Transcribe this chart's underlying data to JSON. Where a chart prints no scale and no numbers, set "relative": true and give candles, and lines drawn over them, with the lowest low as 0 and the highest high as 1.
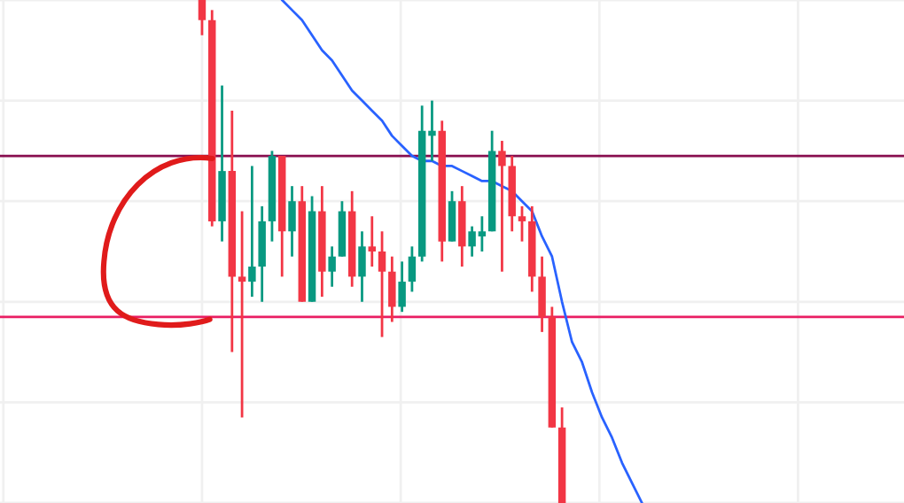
{
  "chart_data": {
    "type": "candlestick",
    "relative": true,
    "tick_labels": false,
    "grid": true,
    "categories": [
      null,
      null,
      null,
      null,
      null,
      null,
      null,
      null,
      null,
      null,
      null,
      null,
      null,
      null,
      null,
      null,
      null,
      null,
      null,
      null,
      null,
      null,
      null,
      null,
      null,
      null,
      null,
      null,
      null,
      null,
      null,
      null,
      null,
      null,
      null,
      null,
      null,
      null,
      null,
      null,
      null,
      null,
      null,
      null,
      null
    ],
    "ohlc": [
      [
        1.0,
        1.0,
        0.93,
        0.96
      ],
      [
        0.96,
        0.98,
        0.55,
        0.56
      ],
      [
        0.56,
        0.83,
        0.52,
        0.66
      ],
      [
        0.66,
        0.78,
        0.3,
        0.45
      ],
      [
        0.45,
        0.58,
        0.17,
        0.44
      ],
      [
        0.44,
        0.67,
        0.41,
        0.47
      ],
      [
        0.47,
        0.59,
        0.4,
        0.56
      ],
      [
        0.56,
        0.7,
        0.52,
        0.69
      ],
      [
        0.69,
        0.69,
        0.45,
        0.54
      ],
      [
        0.54,
        0.63,
        0.49,
        0.6
      ],
      [
        0.6,
        0.63,
        0.4,
        0.4
      ],
      [
        0.4,
        0.61,
        0.4,
        0.58
      ],
      [
        0.58,
        0.63,
        0.41,
        0.46
      ],
      [
        0.46,
        0.51,
        0.43,
        0.49
      ],
      [
        0.49,
        0.6,
        0.49,
        0.58
      ],
      [
        0.58,
        0.62,
        0.43,
        0.45
      ],
      [
        0.45,
        0.54,
        0.4,
        0.51
      ],
      [
        0.51,
        0.57,
        0.47,
        0.5
      ],
      [
        0.5,
        0.54,
        0.33,
        0.46
      ],
      [
        0.46,
        0.49,
        0.36,
        0.39
      ],
      [
        0.39,
        0.48,
        0.38,
        0.44
      ],
      [
        0.44,
        0.51,
        0.42,
        0.49
      ],
      [
        0.49,
        0.79,
        0.48,
        0.74
      ],
      [
        0.73,
        0.8,
        0.68,
        0.74
      ],
      [
        0.74,
        0.76,
        0.48,
        0.52
      ],
      [
        0.52,
        0.62,
        0.52,
        0.6
      ],
      [
        0.6,
        0.63,
        0.47,
        0.51
      ],
      [
        0.51,
        0.55,
        0.49,
        0.54
      ],
      [
        0.53,
        0.57,
        0.5,
        0.54
      ],
      [
        0.54,
        0.74,
        0.54,
        0.7
      ],
      [
        0.7,
        0.72,
        0.46,
        0.67
      ],
      [
        0.67,
        0.69,
        0.54,
        0.57
      ],
      [
        0.57,
        0.59,
        0.52,
        0.56
      ],
      [
        0.56,
        0.59,
        0.42,
        0.45
      ],
      [
        0.45,
        0.49,
        0.34,
        0.37
      ],
      [
        0.37,
        0.39,
        0.15,
        0.15
      ],
      [
        0.15,
        0.19,
        0.0,
        0.0
      ],
      null,
      null,
      null,
      null,
      null,
      null,
      null,
      null
    ],
    "colors": [
      "#f23645",
      "#f23645",
      "#089981",
      "#f23645",
      "#f23645",
      "#089981",
      "#089981",
      "#089981",
      "#f23645",
      "#089981",
      "#f23645",
      "#089981",
      "#f23645",
      "#089981",
      "#089981",
      "#f23645",
      "#089981",
      "#f23645",
      "#f23645",
      "#f23645",
      "#089981",
      "#089981",
      "#089981",
      "#089981",
      "#f23645",
      "#089981",
      "#f23645",
      "#089981",
      "#089981",
      "#089981",
      "#f23645",
      "#f23645",
      "#f23645",
      "#f23645",
      "#f23645",
      "#f23645",
      "#f23645",
      null,
      null,
      null,
      null,
      null,
      null,
      null,
      null
    ],
    "series": [
      {
        "type": "line",
        "color": "#2962ff",
        "values": [
          null,
          null,
          null,
          null,
          null,
          null,
          null,
          null,
          1.0,
          0.98,
          0.96,
          0.93,
          0.9,
          0.88,
          0.85,
          0.82,
          0.8,
          0.78,
          0.76,
          0.73,
          0.71,
          0.69,
          0.68,
          0.68,
          0.67,
          0.67,
          0.66,
          0.65,
          0.64,
          0.64,
          0.63,
          0.62,
          0.6,
          0.58,
          0.53,
          0.49,
          0.4,
          0.32,
          0.28,
          0.22,
          0.17,
          0.13,
          0.08,
          0.04,
          0.0
        ]
      }
    ],
    "ref_lines": [
      {
        "axis": "y",
        "value": 0.69,
        "color": "#880e4f"
      },
      {
        "axis": "y",
        "value": 0.37,
        "color": "#e91e63"
      }
    ]
  }
}
